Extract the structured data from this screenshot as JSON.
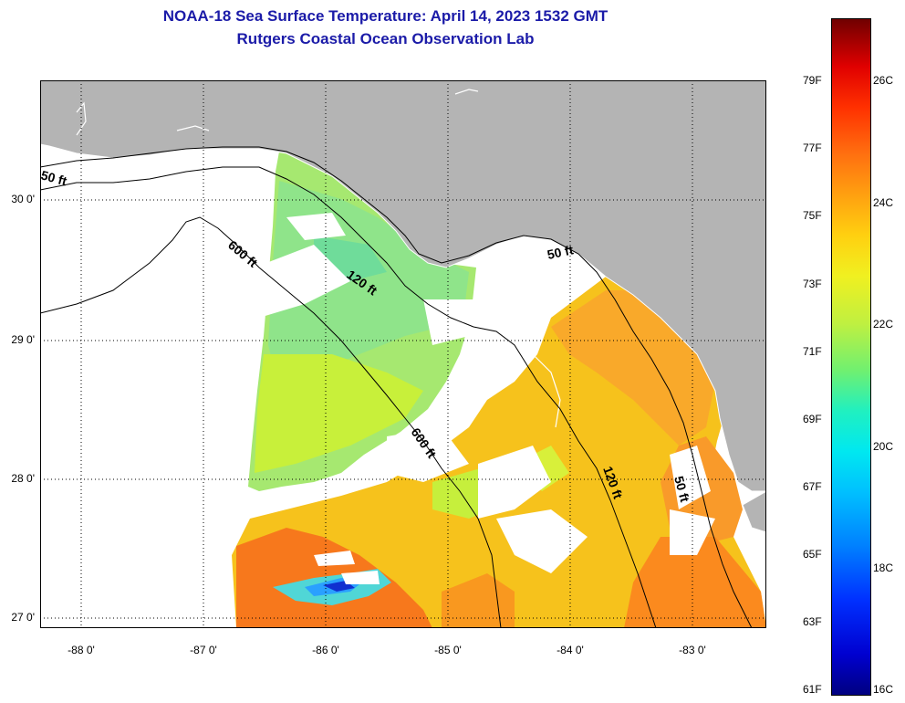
{
  "title": {
    "line1": "NOAA-18 Sea Surface Temperature:  April 14, 2023 1532 GMT",
    "line2": "Rutgers Coastal Ocean Observation Lab"
  },
  "axes": {
    "latitude_labels": [
      "30 0'",
      "29 0'",
      "28 0'",
      "27 0'"
    ],
    "longitude_labels": [
      "-88 0'",
      "-87 0'",
      "-86 0'",
      "-85 0'",
      "-84 0'",
      "-83 0'"
    ]
  },
  "isobaths": [
    "50 ft",
    "600 ft",
    "120 ft",
    "50 ft",
    "600 ft",
    "120 ft",
    "50 ft"
  ],
  "colorbar": {
    "fahrenheit": [
      "79F",
      "77F",
      "75F",
      "73F",
      "71F",
      "69F",
      "67F",
      "65F",
      "63F",
      "61F"
    ],
    "celsius": [
      "26C",
      "24C",
      "22C",
      "20C",
      "18C",
      "16C"
    ]
  },
  "colors": {
    "title": "#1b1ba8",
    "land": "#b4b4b4",
    "water_nodata": "#ffffff"
  }
}
